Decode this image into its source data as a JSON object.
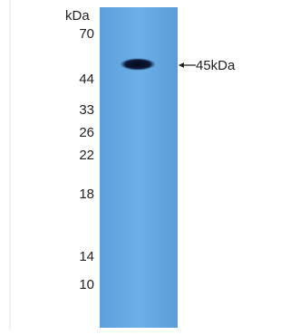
{
  "blot": {
    "unit": "kDa",
    "markers": [
      "70",
      "44",
      "33",
      "26",
      "22",
      "18",
      "14",
      "10"
    ],
    "band_label": "45kDa"
  }
}
